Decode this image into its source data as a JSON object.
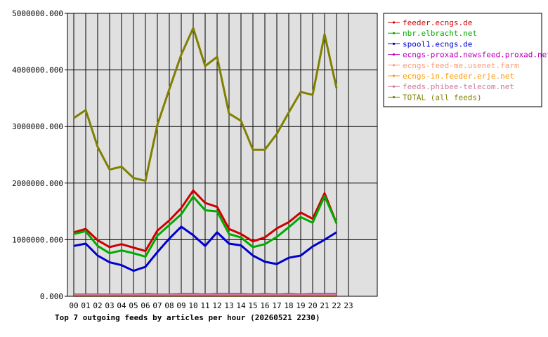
{
  "chart_data": {
    "type": "line",
    "title": "Top 7 outgoing feeds by articles per hour (20260521 2230)",
    "xlabel": "",
    "ylabel": "",
    "categories": [
      "00",
      "01",
      "02",
      "03",
      "04",
      "05",
      "06",
      "07",
      "08",
      "09",
      "10",
      "11",
      "12",
      "13",
      "14",
      "15",
      "16",
      "17",
      "18",
      "19",
      "20",
      "21",
      "22",
      "23"
    ],
    "yticks": [
      "0.000",
      "1000000.000",
      "2000000.000",
      "3000000.000",
      "4000000.000",
      "5000000.000"
    ],
    "ylim": [
      0,
      5000000
    ],
    "grid": true,
    "legend_position": "top-right",
    "series": [
      {
        "name": "feeder.ecngs.de",
        "color": "#cc0000",
        "values": [
          1130000,
          1190000,
          990000,
          870000,
          920000,
          860000,
          800000,
          1160000,
          1340000,
          1560000,
          1870000,
          1650000,
          1580000,
          1190000,
          1100000,
          970000,
          1040000,
          1200000,
          1310000,
          1480000,
          1370000,
          1820000,
          1290000,
          null
        ]
      },
      {
        "name": "nbr.elbracht.net",
        "color": "#00aa00",
        "values": [
          1100000,
          1150000,
          890000,
          760000,
          810000,
          760000,
          700000,
          1070000,
          1260000,
          1450000,
          1760000,
          1520000,
          1500000,
          1100000,
          1040000,
          870000,
          920000,
          1050000,
          1220000,
          1400000,
          1300000,
          1770000,
          1290000,
          null
        ]
      },
      {
        "name": "spool1.ecngs.de",
        "color": "#0000cc",
        "values": [
          890000,
          930000,
          720000,
          600000,
          550000,
          450000,
          520000,
          780000,
          1020000,
          1230000,
          1080000,
          890000,
          1130000,
          930000,
          900000,
          720000,
          610000,
          570000,
          680000,
          720000,
          880000,
          1000000,
          1130000,
          null
        ]
      },
      {
        "name": "ecngs-proxad.newsfeed.proxad.net",
        "color": "#bb00bb",
        "values": [
          30000,
          30000,
          30000,
          30000,
          30000,
          30000,
          40000,
          30000,
          30000,
          40000,
          40000,
          30000,
          40000,
          40000,
          40000,
          30000,
          40000,
          30000,
          40000,
          30000,
          40000,
          40000,
          40000,
          null
        ]
      },
      {
        "name": "ecngs-feed-me.usenet.farm",
        "color": "#ff9977",
        "values": [
          20000,
          20000,
          20000,
          20000,
          20000,
          20000,
          20000,
          20000,
          20000,
          20000,
          20000,
          20000,
          20000,
          20000,
          20000,
          20000,
          20000,
          20000,
          20000,
          20000,
          20000,
          20000,
          20000,
          null
        ]
      },
      {
        "name": "ecngs-in.feeder.erje.net",
        "color": "#ff9900",
        "values": [
          10000,
          10000,
          10000,
          10000,
          10000,
          10000,
          10000,
          10000,
          10000,
          10000,
          10000,
          10000,
          10000,
          10000,
          10000,
          10000,
          10000,
          10000,
          10000,
          10000,
          10000,
          10000,
          10000,
          null
        ]
      },
      {
        "name": "feeds.phibee-telecom.net",
        "color": "#cc7799",
        "values": [
          20000,
          20000,
          20000,
          20000,
          20000,
          20000,
          30000,
          20000,
          20000,
          30000,
          30000,
          20000,
          30000,
          30000,
          30000,
          20000,
          30000,
          20000,
          30000,
          20000,
          30000,
          30000,
          30000,
          null
        ]
      },
      {
        "name": "TOTAL (all feeds)",
        "color": "#808000",
        "values": [
          3150000,
          3290000,
          2640000,
          2240000,
          2290000,
          2090000,
          2040000,
          3030000,
          3660000,
          4270000,
          4740000,
          4070000,
          4230000,
          3230000,
          3100000,
          2590000,
          2590000,
          2870000,
          3250000,
          3610000,
          3560000,
          4630000,
          3680000,
          null
        ]
      }
    ]
  }
}
